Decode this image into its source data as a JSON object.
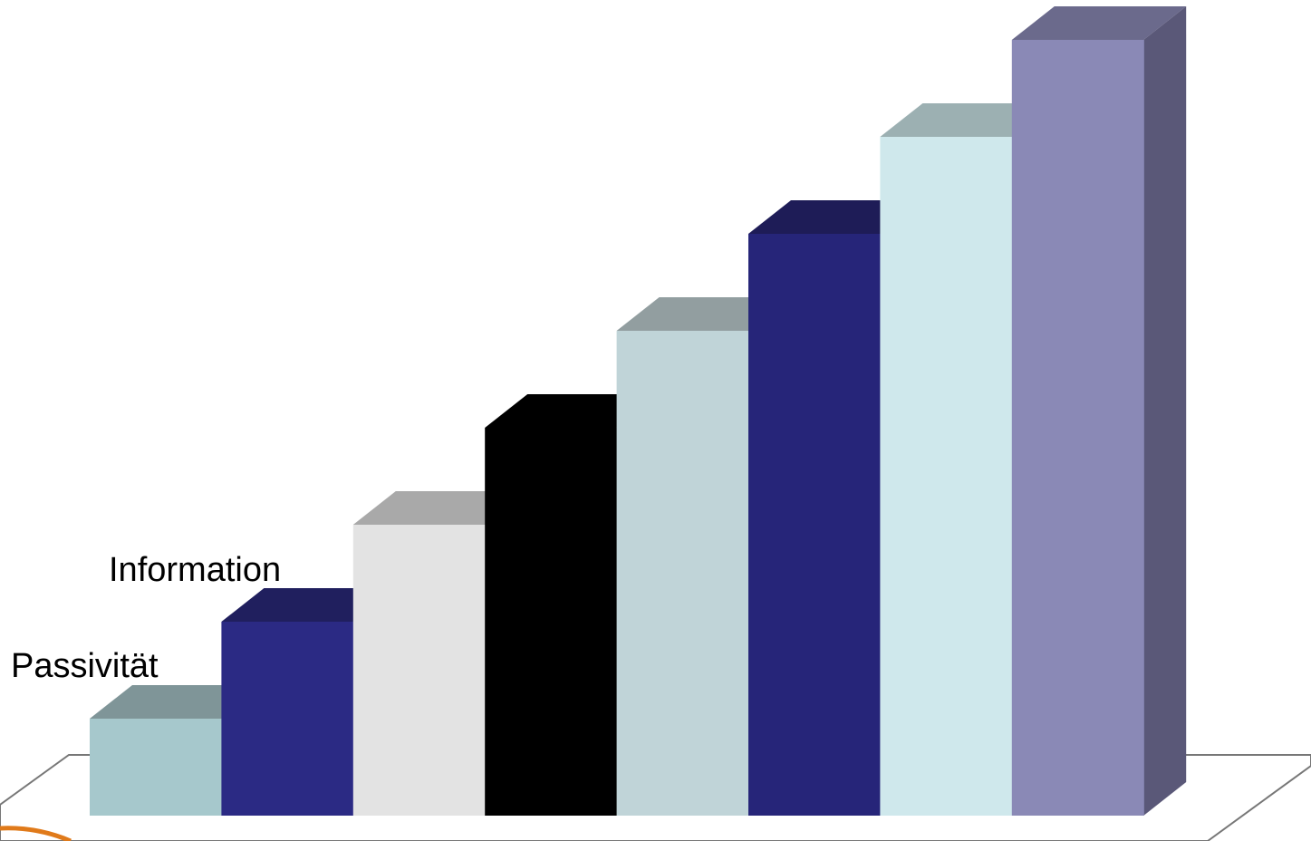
{
  "chart_data": {
    "type": "bar",
    "style": "3d",
    "categories": [
      "Passivität",
      "Information",
      "",
      "",
      "",
      "",
      "",
      ""
    ],
    "values": [
      1,
      2,
      3,
      4,
      5,
      6,
      7,
      8
    ],
    "title": "",
    "xlabel": "",
    "ylabel": "",
    "ylim": [
      0,
      8
    ],
    "grid": false,
    "legend": "none",
    "bar_colors": [
      {
        "front": "#a6c8cc",
        "top": "#7f9598",
        "side": "#6f8486"
      },
      {
        "front": "#2b2a84",
        "top": "#201f5e",
        "side": "#1c1b52"
      },
      {
        "front": "#e3e3e3",
        "top": "#a9a9a9",
        "side": "#9a9a9a"
      },
      {
        "front": "#000000",
        "top": "#000000",
        "side": "#000000"
      },
      {
        "front": "#c0d4d8",
        "top": "#929ea0",
        "side": "#85918f"
      },
      {
        "front": "#262579",
        "top": "#1e1c57",
        "side": "#1a1950"
      },
      {
        "front": "#cfe8ec",
        "top": "#9cb0b2",
        "side": "#8ea2a4"
      },
      {
        "front": "#8a89b6",
        "top": "#6b6a8c",
        "side": "#5a5878"
      }
    ],
    "floor_colors": {
      "stroke": "#777777",
      "accent": "#e07a1a"
    }
  }
}
